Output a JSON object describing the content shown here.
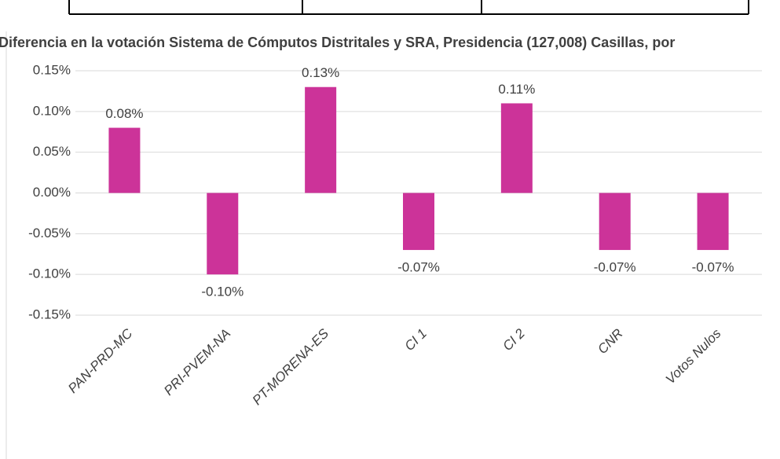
{
  "chart_data": {
    "type": "bar",
    "title": "Diferencia en la votación Sistema de Cómputos Distritales y SRA, Presidencia (127,008) Casillas, por",
    "categories": [
      "PAN-PRD-MC",
      "PRI-PVEM-NA",
      "PT-MORENA-ES",
      "CI 1",
      "CI 2",
      "CNR",
      "Votos Nulos"
    ],
    "values": [
      0.08,
      -0.1,
      0.13,
      -0.07,
      0.11,
      -0.07,
      -0.07
    ],
    "value_labels": [
      "0.08%",
      "-0.10%",
      "0.13%",
      "-0.07%",
      "0.11%",
      "-0.07%",
      "-0.07%"
    ],
    "color": "#cc3399",
    "ylim": [
      -0.15,
      0.15
    ],
    "yticks": [
      {
        "value": 0.15,
        "label": "0.15%"
      },
      {
        "value": 0.1,
        "label": "0.10%"
      },
      {
        "value": 0.05,
        "label": "0.05%"
      },
      {
        "value": 0.0,
        "label": "0.00%"
      },
      {
        "value": -0.05,
        "label": "-0.05%"
      },
      {
        "value": -0.1,
        "label": "-0.10%"
      },
      {
        "value": -0.15,
        "label": "-0.15%"
      }
    ],
    "grid": true
  }
}
